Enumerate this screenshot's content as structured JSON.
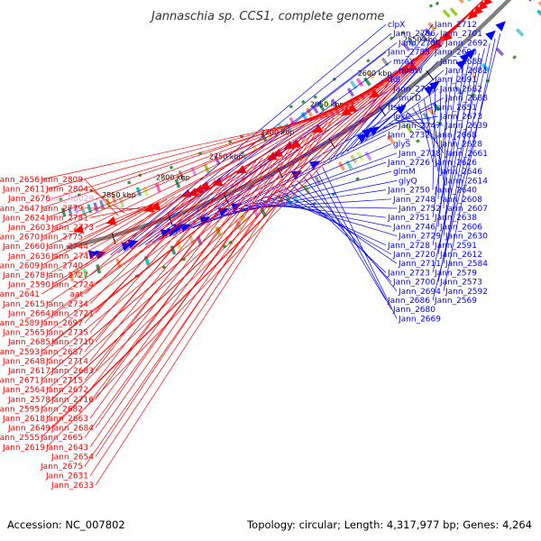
{
  "title": "Jannaschia sp. CCS1, complete genome",
  "footer": {
    "accession": "Accession: NC_007802",
    "topology": "Topology: circular; Length: 4,317,977 bp; Genes: 4,264"
  },
  "colors": {
    "reverse": "#ff0000",
    "forward": "#0000ff",
    "rna": "#ff99cc",
    "backbone": "#808080"
  },
  "ticks": [
    {
      "label": "2850 kbp"
    },
    {
      "label": "2800 kbp"
    },
    {
      "label": "2750 kbp"
    },
    {
      "label": "2700 kbp"
    },
    {
      "label": "2650 kbp"
    },
    {
      "label": "2600 kbp"
    },
    {
      "label": "2550 kbp"
    }
  ],
  "blue_labels": [
    "clpX",
    "Jann_2786",
    "Jann_2780",
    "Jann_2785",
    "mraY",
    "mraW",
    "ddl",
    "Jann_2745",
    "murD",
    "ftsW",
    "lpxC",
    "Jann_2747",
    "Jann_2732",
    "glyS",
    "Jann_2718",
    "Jann_2726",
    "glmM",
    "glyQ",
    "Jann_2750",
    "Jann_2748",
    "Jann_2752",
    "Jann_2751",
    "Jann_2746",
    "Jann_2729",
    "Jann_2728",
    "Jann_2720",
    "Jann_2711",
    "Jann_2723",
    "Jann_2700",
    "Jann_2694",
    "Jann_2686",
    "Jann_2680",
    "Jann_2669",
    "Jann_2712",
    "Jann_2701",
    "Jann_2692",
    "Jann_2690",
    "Jann_2689",
    "Jann_2681",
    "Jann_2691",
    "Jann_2662",
    "Jann_2688",
    "Jann_2651",
    "Jann_2673",
    "Jann_2639",
    "Jann_2668",
    "Jann_2628",
    "Jann_2661",
    "Jann_2626",
    "Jann_2646",
    "Jann_2614",
    "Jann_2640",
    "Jann_2608",
    "Jann_2607",
    "Jann_2638",
    "Jann_2606",
    "Jann_2630",
    "Jann_2591",
    "Jann_2612",
    "Jann_2584",
    "Jann_2579",
    "Jann_2573",
    "Jann_2592",
    "Jann_2569"
  ],
  "red_labels": [
    "Jann_2809",
    "Jann_2804",
    "Jann_R0029",
    "Jann_2779",
    "Jann_2781",
    "Jann_2773",
    "Jann_2775",
    "Jann_2744",
    "Jann_2743",
    "Jann_2740",
    "Jann_2727",
    "Jann_2724",
    "aat",
    "Jann_2734",
    "Jann_2721",
    "Jann_2697",
    "Jann_2735",
    "Jann_2710",
    "Jann_2687",
    "Jann_2714",
    "Jann_2683",
    "Jann_2715",
    "Jann_2672",
    "Jann_2716",
    "Jann_2682",
    "Jann_2663",
    "Jann_2684",
    "Jann_2665",
    "Jann_2643",
    "Jann_2654",
    "Jann_2675",
    "Jann_2631",
    "Jann_2633",
    "Jann_2656",
    "Jann_2611",
    "Jann_2676",
    "Jann_2647",
    "Jann_2624",
    "Jann_2603",
    "Jann_2670",
    "Jann_2660",
    "Jann_2636",
    "Jann_2609",
    "Jann_2678",
    "Jann_2590",
    "Jann_2641",
    "Jann_2615",
    "Jann_2664",
    "Jann_2589",
    "Jann_2565",
    "Jann_2685",
    "Jann_2593",
    "Jann_2648",
    "Jann_2617",
    "Jann_2671",
    "Jann_2564",
    "Jann_2578",
    "Jann_2595",
    "Jann_2618",
    "Jann_2649",
    "Jann_2555",
    "Jann_2619"
  ]
}
